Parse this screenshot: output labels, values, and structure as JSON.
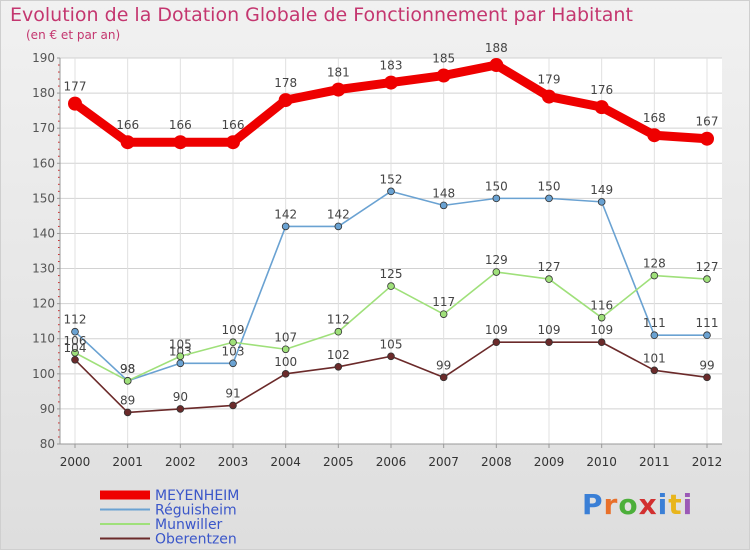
{
  "title": "Evolution de la Dotation Globale de Fonctionnement par Habitant",
  "subtitle": "(en € et par an)",
  "logo": {
    "text": "Proxiti",
    "colors": [
      "#3a7fd6",
      "#e8702a",
      "#4caf3a",
      "#d23030",
      "#3a7fd6",
      "#e8b51c",
      "#9b59b6"
    ]
  },
  "chart_data": {
    "type": "line",
    "x": [
      "2000",
      "2001",
      "2002",
      "2003",
      "2004",
      "2005",
      "2006",
      "2007",
      "2008",
      "2009",
      "2010",
      "2011",
      "2012"
    ],
    "ylim": [
      80,
      190
    ],
    "yticks": [
      80,
      90,
      100,
      110,
      120,
      130,
      140,
      150,
      160,
      170,
      180,
      190
    ],
    "grid": true,
    "legend_position": "bottom-left",
    "series": [
      {
        "name": "MEYENHEIM",
        "color": "#ee0000",
        "emphasis": true,
        "values": [
          177,
          166,
          166,
          166,
          178,
          181,
          183,
          185,
          188,
          179,
          176,
          168,
          167
        ]
      },
      {
        "name": "Réguisheim",
        "color": "#6aa2d2",
        "values": [
          112,
          98,
          103,
          103,
          142,
          142,
          152,
          148,
          150,
          150,
          149,
          111,
          111
        ]
      },
      {
        "name": "Munwiller",
        "color": "#9fe07a",
        "values": [
          106,
          98,
          105,
          109,
          107,
          112,
          125,
          117,
          129,
          127,
          116,
          128,
          127
        ]
      },
      {
        "name": "Oberentzen",
        "color": "#6b2a2a",
        "values": [
          104,
          89,
          90,
          91,
          100,
          102,
          105,
          99,
          109,
          109,
          109,
          101,
          99
        ]
      }
    ]
  }
}
